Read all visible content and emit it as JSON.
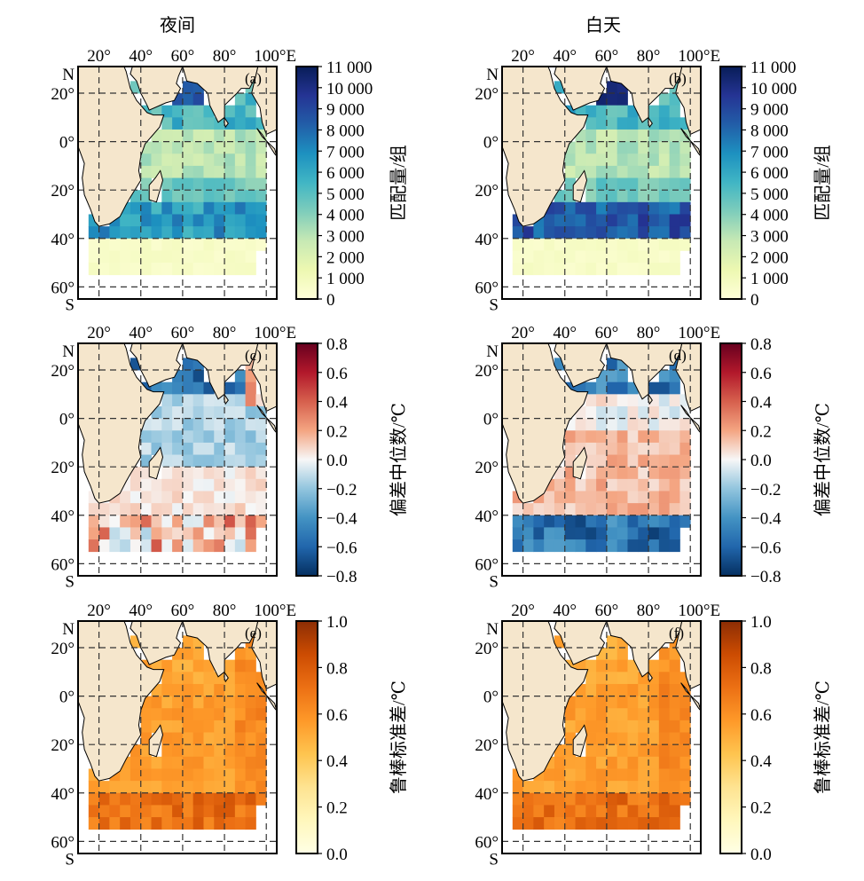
{
  "column_titles": [
    "夜间",
    "白天"
  ],
  "x_ticks": [
    "20°",
    "40°",
    "60°",
    "80°",
    "100°E"
  ],
  "y_ticks": [
    "N",
    "20°",
    "0°",
    "20°",
    "40°",
    "60°",
    "S"
  ],
  "panels": [
    {
      "label": "(a)",
      "variable": "match",
      "colorbar": "cb1"
    },
    {
      "label": "(b)",
      "variable": "match",
      "colorbar": "cb1"
    },
    {
      "label": "(c)",
      "variable": "bias",
      "colorbar": "cb2"
    },
    {
      "label": "(d)",
      "variable": "bias",
      "colorbar": "cb2"
    },
    {
      "label": "(e)",
      "variable": "rsd",
      "colorbar": "cb3"
    },
    {
      "label": "(f)",
      "variable": "rsd",
      "colorbar": "cb3"
    }
  ],
  "colorbars": {
    "cb1": {
      "label": "匹配量/组",
      "min": 0,
      "max": 11000,
      "ticks": [
        "11 000",
        "10 000",
        "9 000",
        "8 000",
        "7 000",
        "6 000",
        "5 000",
        "4 000",
        "3 000",
        "2 000",
        "1 000",
        "0"
      ],
      "colors": [
        "#ffffd9",
        "#edf8b1",
        "#c7e9b4",
        "#7fcdbb",
        "#41b6c4",
        "#1d91c0",
        "#225ea8",
        "#253494",
        "#081d58"
      ]
    },
    "cb2": {
      "label": "偏差中位数/℃",
      "min": -0.8,
      "max": 0.8,
      "ticks": [
        "0.8",
        "0.6",
        "0.4",
        "0.2",
        "0.0",
        "−0.2",
        "−0.4",
        "−0.6",
        "−0.8"
      ],
      "colors": [
        "#053061",
        "#2166ac",
        "#4393c3",
        "#92c5de",
        "#f7f7f7",
        "#f4a582",
        "#d6604d",
        "#b2182b",
        "#67001f"
      ]
    },
    "cb3": {
      "label": "鲁棒标准差/℃",
      "min": 0,
      "max": 1,
      "ticks": [
        "1.0",
        "0.8",
        "0.6",
        "0.4",
        "0.2",
        "0.0"
      ],
      "colors": [
        "#ffffe5",
        "#fff7bc",
        "#fee391",
        "#fec44f",
        "#fe9929",
        "#ec7014",
        "#cc4c02",
        "#8c2d04"
      ]
    }
  },
  "colors": {
    "land": "#f5e6cc",
    "grid": "#333333",
    "coast": "#000000"
  }
}
